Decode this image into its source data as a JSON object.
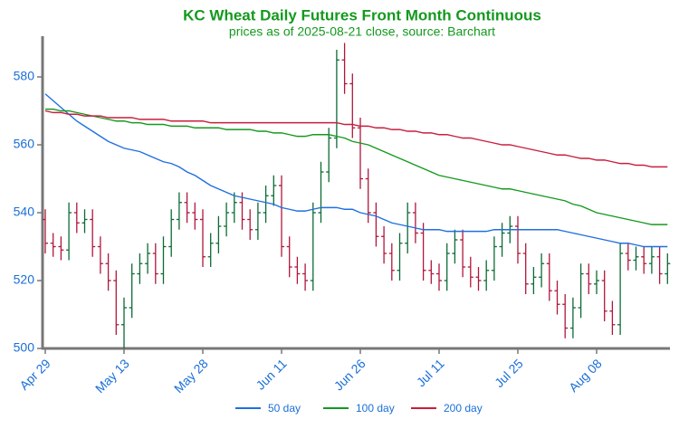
{
  "chart_data": {
    "type": "ohlc",
    "title": "KC Wheat Daily Futures Front Month Continuous",
    "subtitle": "prices as of 2025-08-21 close, source: Barchart",
    "categories": [
      "Apr 29",
      null,
      null,
      null,
      null,
      null,
      null,
      null,
      null,
      null,
      "May 13",
      null,
      null,
      null,
      null,
      null,
      null,
      null,
      null,
      null,
      "May 28",
      null,
      null,
      null,
      null,
      null,
      null,
      null,
      null,
      null,
      "Jun 11",
      null,
      null,
      null,
      null,
      null,
      null,
      null,
      null,
      null,
      "Jun 26",
      null,
      null,
      null,
      null,
      null,
      null,
      null,
      null,
      null,
      "Jul 11",
      null,
      null,
      null,
      null,
      null,
      null,
      null,
      null,
      null,
      "Jul 25",
      null,
      null,
      null,
      null,
      null,
      null,
      null,
      null,
      null,
      "Aug 08",
      null,
      null,
      null,
      null,
      null,
      null,
      null,
      null,
      null
    ],
    "ohlc": {
      "up_color": "#0b6b34",
      "down_color": "#b0163a",
      "open": [
        538,
        531,
        530,
        529,
        540,
        537,
        538,
        530,
        525,
        520,
        507,
        512,
        522,
        525,
        528,
        522,
        530,
        538,
        543,
        540,
        538,
        527,
        531,
        536,
        540,
        543,
        538,
        535,
        540,
        545,
        548,
        530,
        524,
        522,
        520,
        540,
        552,
        562,
        585,
        578,
        565,
        550,
        540,
        533,
        528,
        523,
        531,
        540,
        534,
        523,
        522,
        520,
        528,
        532,
        524,
        521,
        520,
        523,
        530,
        534,
        536,
        528,
        519,
        521,
        525,
        517,
        513,
        506,
        512,
        522,
        519,
        520,
        511,
        507,
        528,
        526,
        527,
        525,
        527,
        522
      ],
      "high": [
        541,
        534,
        533,
        543,
        543,
        541,
        541,
        533,
        528,
        523,
        515,
        525,
        528,
        531,
        531,
        533,
        541,
        546,
        546,
        543,
        541,
        534,
        539,
        543,
        546,
        546,
        541,
        543,
        548,
        551,
        551,
        533,
        527,
        525,
        543,
        555,
        565,
        588,
        590,
        581,
        568,
        553,
        543,
        536,
        531,
        534,
        543,
        543,
        537,
        526,
        525,
        531,
        535,
        535,
        527,
        524,
        526,
        533,
        537,
        539,
        539,
        531,
        524,
        528,
        528,
        520,
        516,
        515,
        525,
        525,
        523,
        523,
        514,
        531,
        531,
        530,
        530,
        530,
        530,
        528
      ],
      "low": [
        528,
        527,
        526,
        526,
        534,
        534,
        527,
        522,
        517,
        504,
        500,
        509,
        519,
        522,
        519,
        519,
        527,
        535,
        537,
        535,
        524,
        524,
        528,
        533,
        537,
        535,
        532,
        532,
        537,
        542,
        527,
        521,
        519,
        517,
        517,
        537,
        549,
        559,
        575,
        562,
        547,
        537,
        530,
        525,
        520,
        520,
        528,
        531,
        520,
        519,
        517,
        517,
        525,
        521,
        518,
        517,
        517,
        520,
        527,
        531,
        525,
        516,
        516,
        518,
        514,
        510,
        503,
        503,
        509,
        516,
        516,
        508,
        504,
        504,
        523,
        523,
        522,
        522,
        519,
        519
      ],
      "close": [
        531,
        530,
        529,
        540,
        537,
        538,
        530,
        525,
        520,
        507,
        512,
        522,
        525,
        528,
        522,
        530,
        538,
        543,
        540,
        538,
        527,
        531,
        536,
        540,
        543,
        538,
        535,
        540,
        545,
        548,
        530,
        524,
        522,
        520,
        540,
        552,
        562,
        585,
        578,
        565,
        550,
        540,
        533,
        528,
        523,
        531,
        540,
        534,
        523,
        522,
        520,
        528,
        532,
        524,
        521,
        520,
        523,
        530,
        534,
        536,
        528,
        519,
        521,
        525,
        517,
        513,
        506,
        512,
        522,
        519,
        520,
        511,
        507,
        528,
        526,
        527,
        525,
        527,
        522,
        525
      ]
    },
    "series": [
      {
        "name": "50 day",
        "color": "#1f6fe0",
        "values": [
          575,
          573,
          571,
          569,
          567,
          565.5,
          564,
          562.5,
          561,
          560,
          559,
          558.5,
          558,
          557,
          556,
          555,
          554.5,
          553.5,
          552,
          551,
          549.5,
          548,
          547,
          546,
          545,
          544.5,
          544,
          543.5,
          543,
          542.5,
          541.5,
          541,
          540.5,
          540.5,
          541,
          541.5,
          541.5,
          541.5,
          541,
          541,
          540,
          539.5,
          539,
          538,
          537,
          536.5,
          536,
          535.5,
          535,
          535,
          535,
          534.5,
          534.5,
          534.5,
          534.5,
          534.5,
          534.5,
          535,
          535,
          535,
          535,
          535,
          535,
          535,
          535,
          535,
          534.5,
          534,
          533.5,
          533,
          532.5,
          532,
          531.5,
          531,
          531,
          530.5,
          530,
          530,
          530,
          530
        ]
      },
      {
        "name": "100 day",
        "color": "#14991e",
        "values": [
          570.5,
          570.5,
          570,
          570,
          569.5,
          569,
          568.5,
          568,
          567.5,
          567,
          567,
          566.5,
          566.5,
          566,
          566,
          566,
          565.5,
          565.5,
          565.5,
          565,
          565,
          565,
          565,
          564.5,
          564.5,
          564.5,
          564.5,
          564,
          564,
          563.5,
          563.5,
          563,
          562.5,
          562.5,
          563,
          563,
          563,
          562.5,
          562,
          561,
          560.5,
          560,
          559,
          558,
          557,
          556,
          555,
          554,
          553,
          552,
          551,
          550.5,
          550,
          549.5,
          549,
          548.5,
          548,
          547.5,
          547,
          547,
          546.5,
          546,
          545.5,
          545,
          544.5,
          544,
          543.5,
          542.5,
          542,
          541,
          540,
          539.5,
          539,
          538.5,
          538,
          537.5,
          537,
          536.5,
          536.5,
          536.5
        ]
      },
      {
        "name": "200 day",
        "color": "#c81e3c",
        "values": [
          570,
          569.5,
          569.5,
          569,
          569,
          568.5,
          568.5,
          568.5,
          568,
          568,
          568,
          568,
          567.5,
          567.5,
          567.5,
          567.5,
          567,
          567,
          567,
          567,
          567,
          566.5,
          566.5,
          566.5,
          566.5,
          566.5,
          566.5,
          566.5,
          566.5,
          566.5,
          566.5,
          566.5,
          566.5,
          566.5,
          566.5,
          566.5,
          566.5,
          566.5,
          566,
          566,
          565.5,
          565.5,
          565,
          565,
          564.5,
          564.5,
          564,
          564,
          563.5,
          563.5,
          563,
          563,
          562.5,
          562,
          562,
          561.5,
          561,
          560.5,
          560,
          560,
          559.5,
          559,
          558.5,
          558,
          557.5,
          557,
          557,
          556.5,
          556,
          556,
          555.5,
          555.5,
          555,
          554.5,
          554.5,
          554,
          554,
          553.5,
          553.5,
          553.5
        ]
      }
    ],
    "ylim": [
      500,
      592
    ],
    "yticks": [
      500,
      520,
      540,
      560,
      580
    ]
  }
}
